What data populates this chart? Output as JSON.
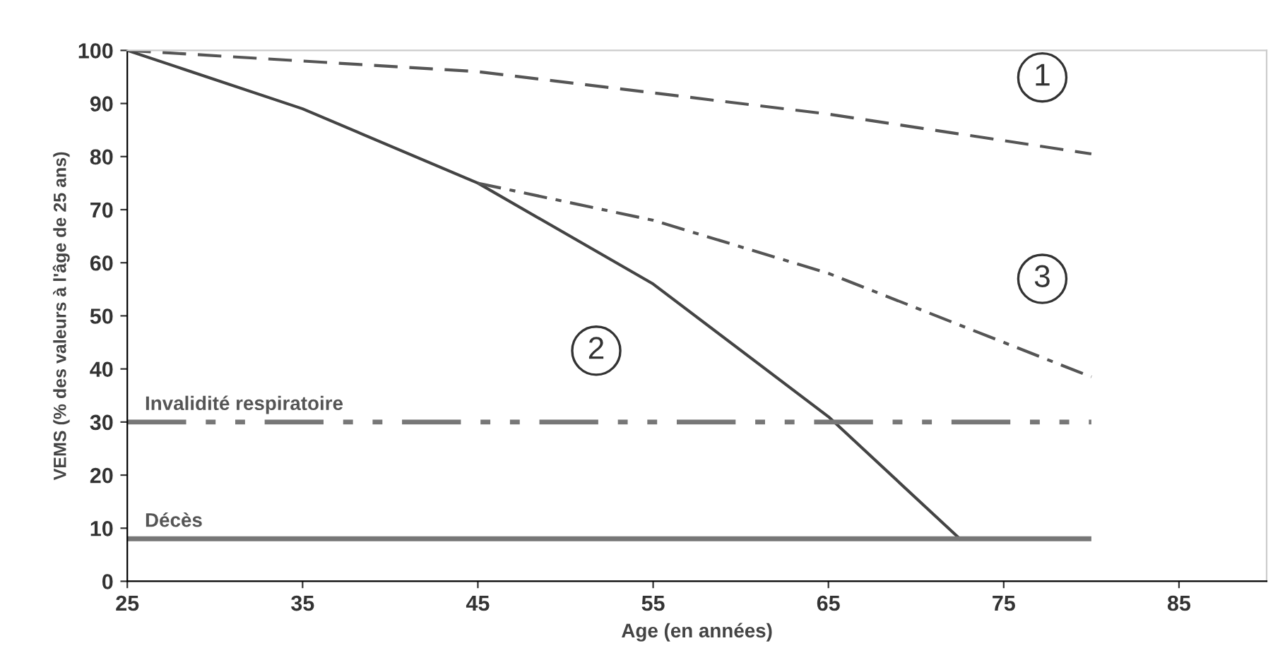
{
  "chart_data": {
    "type": "line",
    "xlabel": "Age (en années)",
    "ylabel": "VEMS (% des valeurs à l'âge de 25 ans)",
    "xlim": [
      25,
      90
    ],
    "ylim": [
      0,
      100
    ],
    "xticks": [
      25,
      35,
      45,
      55,
      65,
      75,
      85
    ],
    "yticks": [
      0,
      10,
      20,
      30,
      40,
      50,
      60,
      70,
      80,
      90,
      100
    ],
    "grid": false,
    "marker": "none",
    "series": [
      {
        "name": "1",
        "color": "#555555",
        "line_style": "dashed",
        "x": [
          25,
          35,
          45,
          55,
          65,
          75,
          80
        ],
        "values": [
          100,
          98,
          96,
          92,
          88,
          83,
          80.5
        ]
      },
      {
        "name": "2",
        "color": "#444444",
        "line_style": "solid",
        "x": [
          25,
          35,
          45,
          55,
          65,
          72.5
        ],
        "values": [
          100,
          89,
          75,
          56,
          31,
          8
        ]
      },
      {
        "name": "3",
        "color": "#555555",
        "line_style": "dashdot",
        "x": [
          45,
          55,
          65,
          75,
          80
        ],
        "values": [
          75,
          68,
          58,
          45,
          38.5
        ]
      }
    ],
    "ref_lines": [
      {
        "axis": "y",
        "value": 30,
        "label": "Invalidité respiratoire",
        "color": "#777777",
        "line_style": "dashdotdot"
      },
      {
        "axis": "y",
        "value": 8,
        "label": "Décès",
        "color": "#777777",
        "line_style": "solid"
      }
    ]
  }
}
